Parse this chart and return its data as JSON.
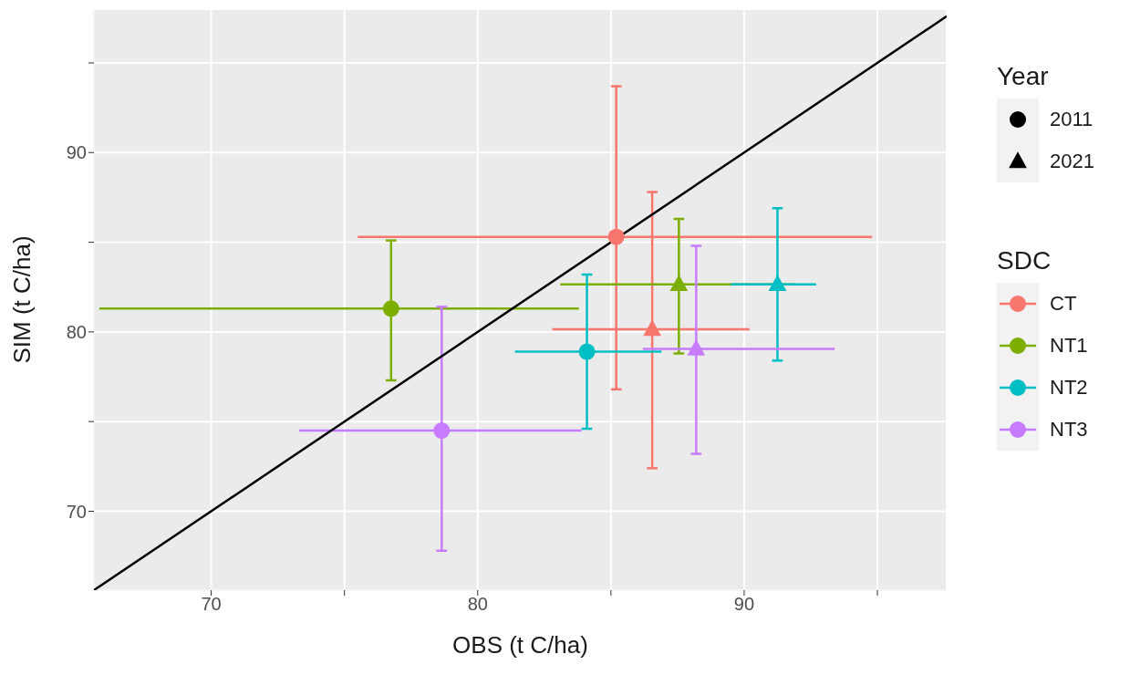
{
  "chart_data": {
    "type": "scatter",
    "xlabel": "OBS (t C/ha)",
    "ylabel": "SIM (t C/ha)",
    "legend_title": [
      "Year",
      "SDC"
    ],
    "xlim": [
      65.6,
      97.6
    ],
    "ylim": [
      65.6,
      98
    ],
    "xticks": [
      70,
      {
        "value": 75,
        "label": null
      },
      80,
      {
        "value": 85,
        "label": null
      },
      90,
      {
        "value": 95,
        "label": null
      }
    ],
    "yticks": [
      70,
      {
        "value": 75,
        "label": null
      },
      80,
      {
        "value": 85,
        "label": null
      },
      90,
      {
        "value": 95,
        "label": null
      }
    ],
    "grid": true,
    "legend": "right",
    "series": [
      {
        "type": "line",
        "color": "#000000",
        "marker": "none",
        "x": [
          65.6,
          97.6
        ],
        "values": [
          65.6,
          97.6
        ]
      },
      {
        "name": "2011",
        "marker": "circle",
        "color": "#000000"
      },
      {
        "name": "2021",
        "marker": "triangle",
        "color": "#000000"
      },
      {
        "name": "CT",
        "color": "#f8766d",
        "marker": [
          "circle",
          "triangle"
        ],
        "x": [
          85.2,
          86.55
        ],
        "values": [
          85.3,
          80.15
        ],
        "errors": [
          [
            76.8,
            93.7
          ],
          [
            72.4,
            87.8
          ]
        ],
        "xerrors": [
          [
            75.5,
            94.8
          ],
          [
            82.8,
            90.2
          ]
        ]
      },
      {
        "name": "NT1",
        "color": "#7cae00",
        "marker": [
          "circle",
          "triangle"
        ],
        "x": [
          76.75,
          87.55
        ],
        "values": [
          81.3,
          82.65
        ],
        "errors": [
          [
            77.3,
            85.1
          ],
          [
            78.8,
            86.3
          ]
        ],
        "xerrors": [
          [
            65.8,
            83.8
          ],
          [
            83.1,
            91.9
          ]
        ]
      },
      {
        "name": "NT2",
        "color": "#00bfc4",
        "marker": [
          "circle",
          "triangle"
        ],
        "x": [
          84.1,
          91.25
        ],
        "values": [
          78.9,
          82.65
        ],
        "errors": [
          [
            74.6,
            83.2
          ],
          [
            78.4,
            86.9
          ]
        ],
        "xerrors": [
          [
            81.4,
            86.9
          ],
          [
            89.5,
            92.7
          ]
        ]
      },
      {
        "name": "NT3",
        "color": "#c77cff",
        "marker": [
          "circle",
          "triangle"
        ],
        "x": [
          78.65,
          88.2
        ],
        "values": [
          74.5,
          79.05
        ],
        "errors": [
          [
            67.8,
            81.4
          ],
          [
            73.2,
            84.8
          ]
        ],
        "xerrors": [
          [
            73.3,
            83.9
          ],
          [
            86.2,
            93.4
          ]
        ]
      }
    ]
  }
}
